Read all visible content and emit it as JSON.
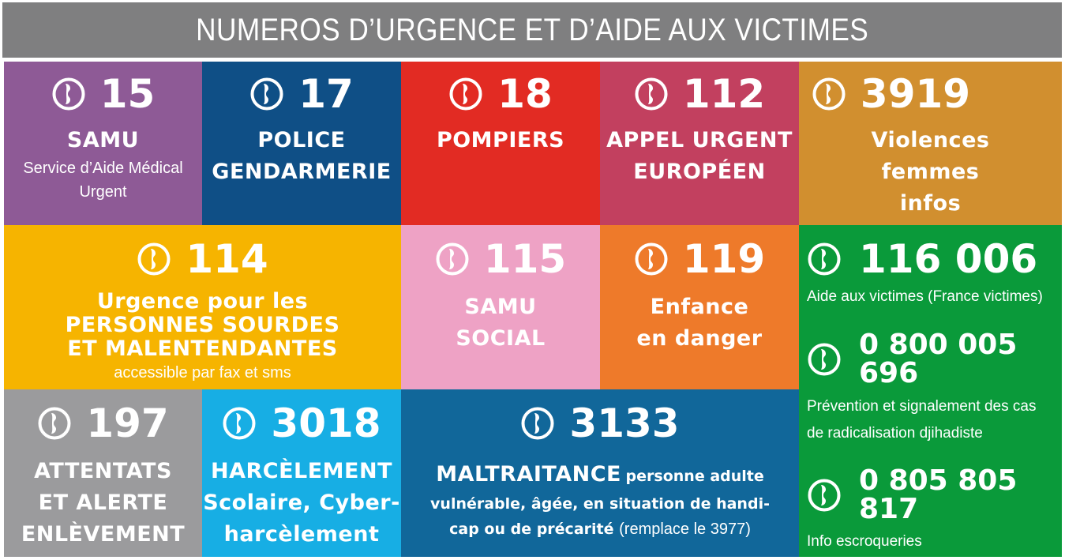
{
  "title": "NUMEROS D’URGENCE ET D’AIDE AUX VICTIMES",
  "colors": {
    "header": "#7f7f80",
    "samu": "#8e5a96",
    "police": "#0f4f86",
    "pompiers": "#e22b23",
    "europe": "#c2405f",
    "violences": "#d18f2f",
    "sourds": "#f6b400",
    "samu_social": "#eea2c5",
    "enfance": "#ee7a2a",
    "aide": "#0a9a3a",
    "attentats": "#9b9b9d",
    "harcelement": "#17aee4",
    "maltraitance": "#11679a"
  },
  "cards": {
    "c15": {
      "icon": "phone-icon",
      "number": "15",
      "title": "SAMU",
      "sub1": "Service d’Aide Médical",
      "sub2": "Urgent"
    },
    "c17": {
      "icon": "phone-icon",
      "number": "17",
      "title1": "POLICE",
      "title2": "GENDARMERIE"
    },
    "c18": {
      "icon": "phone-icon",
      "number": "18",
      "title": "POMPIERS"
    },
    "c112": {
      "icon": "phone-icon",
      "number": "112",
      "title1": "APPEL URGENT",
      "title2": "EUROPÉEN"
    },
    "c3919": {
      "icon": "phone-icon",
      "number": "3919",
      "title1": "Violences",
      "title2": "femmes",
      "title3": "infos"
    },
    "c114": {
      "icon": "phone-icon",
      "number": "114",
      "title1": "Urgence pour les",
      "title2": "PERSONNES SOURDES",
      "title3": "ET MALENTENDANTES",
      "sub": "accessible par fax et sms"
    },
    "c115": {
      "icon": "phone-icon",
      "number": "115",
      "title1": "SAMU",
      "title2": "SOCIAL"
    },
    "c119": {
      "icon": "phone-icon",
      "number": "119",
      "title1": "Enfance",
      "title2": "en danger"
    },
    "c116006": {
      "icon": "phone-icon",
      "number": "116 006",
      "sub": "Aide aux victimes (France victimes)"
    },
    "c0800": {
      "icon": "phone-icon",
      "number": "0 800 005 696",
      "sub1": "Prévention et signalement des cas",
      "sub2": "de radicalisation djihadiste"
    },
    "c0805": {
      "icon": "phone-icon",
      "number": "0 805 805 817",
      "sub": "Info escroqueries"
    },
    "c197": {
      "icon": "phone-icon",
      "number": "197",
      "title1": "ATTENTATS",
      "title2": "ET ALERTE",
      "title3": "ENLÈVEMENT"
    },
    "c3018": {
      "icon": "phone-icon",
      "number": "3018",
      "title1": "HARCÈLEMENT",
      "title2": "Scolaire, Cyber-",
      "title3": "harcèlement"
    },
    "c3133": {
      "icon": "phone-icon",
      "number": "3133",
      "title": "MALTRAITANCE",
      "line1": "personne adulte",
      "line2": "vulnérable, âgée, en situation de handi-",
      "line3": "cap ou de précarité",
      "line3b": "(remplace le 3977)"
    }
  }
}
